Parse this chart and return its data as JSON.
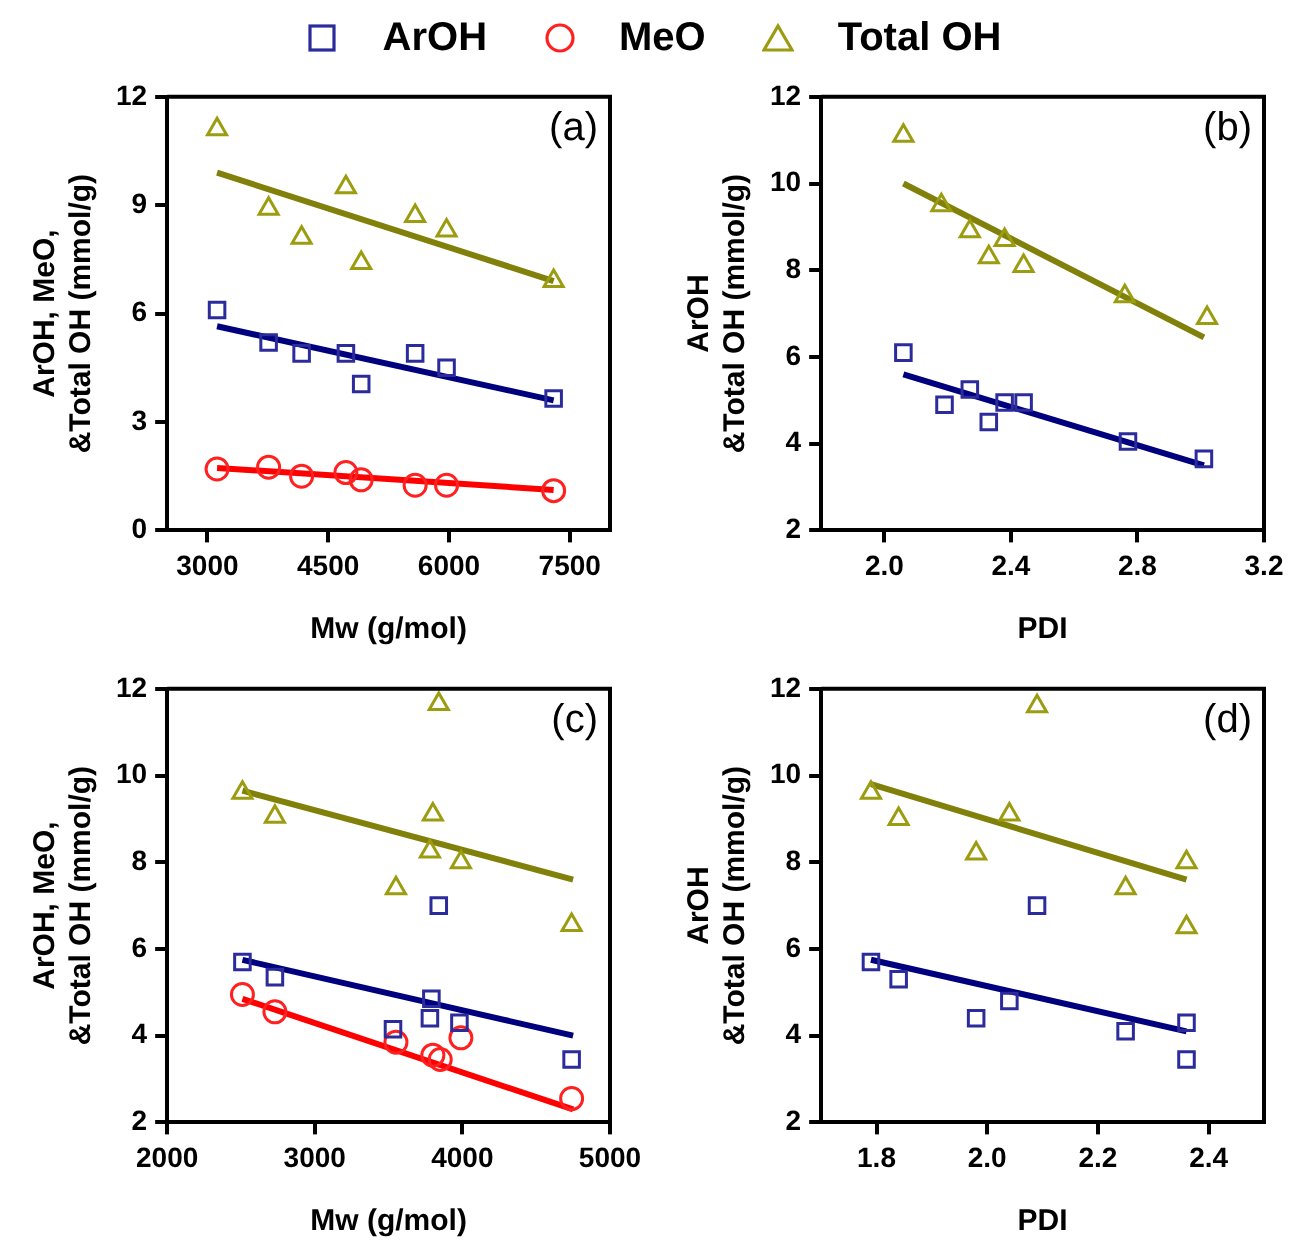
{
  "chart_data": [
    {
      "type": "scatter",
      "xlabel": "Mw (g/mol)",
      "ylabel": "ArOH, MeO,\n&Total OH (mmol/g)",
      "annotations": [
        "(a)"
      ],
      "legend": "top",
      "xlim": [
        2500,
        8000
      ],
      "xticks": [
        3000,
        4500,
        6000,
        7500
      ],
      "ylim": [
        0,
        12
      ],
      "yticks": [
        0,
        3,
        6,
        9,
        12
      ],
      "series": [
        {
          "name": "ArOH",
          "marker": "square",
          "color": "#2b2b9c",
          "x": [
            3120,
            3760,
            4170,
            4720,
            4910,
            5580,
            5970,
            7300
          ],
          "values": [
            6.1,
            5.2,
            4.9,
            4.9,
            4.05,
            4.9,
            4.5,
            3.65
          ]
        },
        {
          "name": "MeO",
          "marker": "circle",
          "color": "#ff2020",
          "x": [
            3120,
            3760,
            4170,
            4720,
            4910,
            5580,
            5970,
            7300
          ],
          "values": [
            1.7,
            1.75,
            1.5,
            1.6,
            1.4,
            1.25,
            1.25,
            1.1
          ]
        },
        {
          "name": "Total OH",
          "marker": "triangle",
          "color": "#9c9c10",
          "x": [
            3120,
            3760,
            4170,
            4720,
            4910,
            5580,
            5970,
            7300
          ],
          "values": [
            11.1,
            8.9,
            8.1,
            9.5,
            7.4,
            8.7,
            8.3,
            6.9
          ]
        },
        {
          "type": "line",
          "marker": "none",
          "color": "#00007f",
          "x": [
            3120,
            7300
          ],
          "values": [
            5.65,
            3.6
          ]
        },
        {
          "type": "line",
          "marker": "none",
          "color": "#ff0000",
          "x": [
            3120,
            7300
          ],
          "values": [
            1.73,
            1.12
          ]
        },
        {
          "type": "line",
          "marker": "none",
          "color": "#80800a",
          "x": [
            3120,
            7300
          ],
          "values": [
            9.9,
            6.9
          ]
        }
      ]
    },
    {
      "type": "scatter",
      "xlabel": "PDI",
      "ylabel": "ArOH\n&Total OH (mmol/g)",
      "annotations": [
        "(b)"
      ],
      "xlim": [
        1.8,
        3.2
      ],
      "xticks": [
        {
          "value": 2,
          "label": "2.0"
        },
        2.4,
        2.8,
        3.2
      ],
      "ylim": [
        2,
        12
      ],
      "yticks": [
        2,
        4,
        6,
        8,
        10,
        12
      ],
      "series": [
        {
          "type": "scatter",
          "marker": "square",
          "color": "#2b2b9c",
          "x": [
            2.06,
            2.19,
            2.27,
            2.33,
            2.38,
            2.44,
            2.77,
            3.01
          ],
          "values": [
            6.1,
            4.9,
            5.25,
            4.5,
            4.95,
            4.95,
            4.05,
            3.65
          ]
        },
        {
          "type": "scatter",
          "marker": "triangle",
          "color": "#9c9c10",
          "x": [
            2.06,
            2.18,
            2.27,
            2.33,
            2.38,
            2.44,
            2.76,
            3.02
          ],
          "values": [
            11.1,
            9.5,
            8.9,
            8.3,
            8.7,
            8.1,
            7.4,
            6.9
          ]
        },
        {
          "type": "line",
          "marker": "none",
          "color": "#00007f",
          "x": [
            2.06,
            3.01
          ],
          "values": [
            5.6,
            3.5
          ]
        },
        {
          "type": "line",
          "marker": "none",
          "color": "#80800a",
          "x": [
            2.06,
            3.01
          ],
          "values": [
            10.0,
            6.45
          ]
        }
      ]
    },
    {
      "type": "scatter",
      "xlabel": "Mw (g/mol)",
      "ylabel": "ArOH, MeO,\n&Total OH (mmol/g)",
      "annotations": [
        "(c)"
      ],
      "xlim": [
        2000,
        5000
      ],
      "xticks": [
        2000,
        3000,
        4000,
        5000
      ],
      "ylim": [
        2,
        12
      ],
      "yticks": [
        2,
        4,
        6,
        8,
        10,
        12
      ],
      "series": [
        {
          "type": "scatter",
          "marker": "square",
          "color": "#2b2b9c",
          "x": [
            2510,
            2730,
            3530,
            3780,
            3790,
            3840,
            3980,
            4740
          ],
          "values": [
            5.7,
            5.35,
            4.15,
            4.4,
            4.85,
            7.0,
            4.3,
            3.45
          ]
        },
        {
          "type": "scatter",
          "marker": "circle",
          "color": "#ff2020",
          "x": [
            2510,
            2730,
            3550,
            3800,
            3850,
            3990,
            4740
          ],
          "values": [
            4.95,
            4.55,
            3.85,
            3.55,
            3.45,
            3.95,
            2.55
          ]
        },
        {
          "type": "scatter",
          "marker": "triangle",
          "color": "#9c9c10",
          "x": [
            2510,
            2730,
            3550,
            3780,
            3800,
            3840,
            3990,
            4740
          ],
          "values": [
            9.6,
            9.05,
            7.4,
            8.25,
            9.1,
            11.65,
            8.0,
            6.55
          ]
        },
        {
          "type": "line",
          "marker": "none",
          "color": "#00007f",
          "x": [
            2510,
            4750
          ],
          "values": [
            5.75,
            4.0
          ]
        },
        {
          "type": "line",
          "marker": "none",
          "color": "#ff0000",
          "x": [
            2510,
            4750
          ],
          "values": [
            4.85,
            2.3
          ]
        },
        {
          "type": "line",
          "marker": "none",
          "color": "#80800a",
          "x": [
            2510,
            4750
          ],
          "values": [
            9.65,
            7.6
          ]
        }
      ]
    },
    {
      "type": "scatter",
      "xlabel": "PDI",
      "ylabel": "ArOH\n&Total OH (mmol/g)",
      "annotations": [
        "(d)"
      ],
      "xlim": [
        1.7,
        2.5
      ],
      "xticks": [
        1.8,
        {
          "value": 2,
          "label": "2.0"
        },
        2.2,
        2.4
      ],
      "ylim": [
        2,
        12
      ],
      "yticks": [
        2,
        4,
        6,
        8,
        10,
        12
      ],
      "series": [
        {
          "type": "scatter",
          "marker": "square",
          "color": "#2b2b9c",
          "x": [
            1.79,
            1.84,
            1.98,
            2.04,
            2.09,
            2.25,
            2.36,
            2.36
          ],
          "values": [
            5.7,
            5.3,
            4.4,
            4.8,
            7.0,
            4.1,
            4.3,
            3.45
          ]
        },
        {
          "type": "scatter",
          "marker": "triangle",
          "color": "#9c9c10",
          "x": [
            1.79,
            1.84,
            1.98,
            2.04,
            2.09,
            2.25,
            2.36,
            2.36
          ],
          "values": [
            9.6,
            9.0,
            8.2,
            9.1,
            11.6,
            7.4,
            8.0,
            6.5
          ]
        },
        {
          "type": "line",
          "marker": "none",
          "color": "#00007f",
          "x": [
            1.79,
            2.36
          ],
          "values": [
            5.75,
            4.1
          ]
        },
        {
          "type": "line",
          "marker": "none",
          "color": "#80800a",
          "x": [
            1.79,
            2.36
          ],
          "values": [
            9.8,
            7.6
          ]
        }
      ]
    }
  ]
}
